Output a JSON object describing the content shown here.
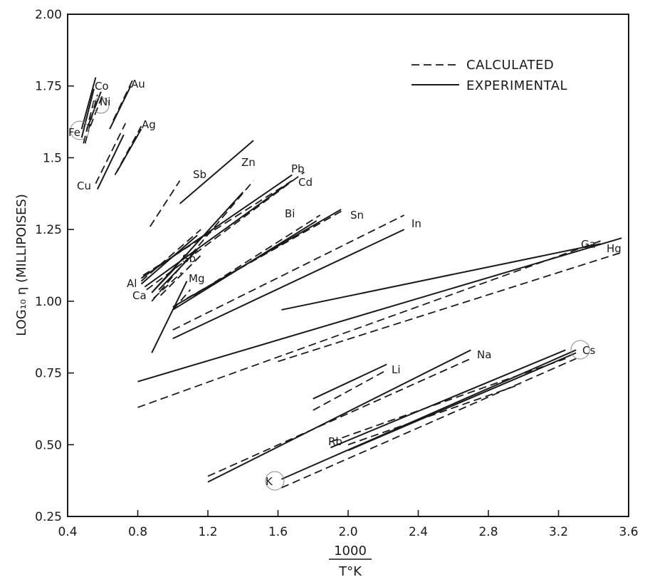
{
  "chart_data": {
    "type": "line",
    "xlabel_numerator": "1000",
    "xlabel_denominator": "T°K",
    "ylabel": "LOG₁₀ η (MILLIPOISES)",
    "xlim": [
      0.4,
      3.6
    ],
    "ylim": [
      0.25,
      2.0
    ],
    "xticks": [
      {
        "value": 0.4,
        "label": "0.4"
      },
      {
        "value": 0.8,
        "label": "0.8"
      },
      {
        "value": 1.2,
        "label": "1.2"
      },
      {
        "value": 1.6,
        "label": "1.6"
      },
      {
        "value": 2.0,
        "label": "2.0"
      },
      {
        "value": 2.4,
        "label": "2.4"
      },
      {
        "value": 2.8,
        "label": "2.8"
      },
      {
        "value": 3.2,
        "label": "3.2"
      },
      {
        "value": 3.6,
        "label": "3.6"
      }
    ],
    "yticks": [
      {
        "value": 0.25,
        "label": "0.25"
      },
      {
        "value": 0.5,
        "label": "0.50"
      },
      {
        "value": 0.75,
        "label": "0.75"
      },
      {
        "value": 1.0,
        "label": "1.00"
      },
      {
        "value": 1.25,
        "label": "1.25"
      },
      {
        "value": 1.5,
        "label": "1.5"
      },
      {
        "value": 1.75,
        "label": "1.75"
      },
      {
        "value": 2.0,
        "label": "2.00"
      }
    ],
    "legend": {
      "placement": "top-right",
      "items": [
        {
          "style": "dashed",
          "label": "CALCULATED"
        },
        {
          "style": "solid",
          "label": "EXPERIMENTAL"
        }
      ]
    },
    "series": [
      {
        "label": "Fe",
        "experimental": [
          [
            0.48,
            1.57
          ],
          [
            0.55,
            1.74
          ]
        ],
        "calculated": [
          [
            0.49,
            1.55
          ],
          [
            0.55,
            1.7
          ]
        ]
      },
      {
        "label": "Co",
        "experimental": [
          [
            0.48,
            1.6
          ],
          [
            0.56,
            1.78
          ]
        ],
        "calculated": [
          [
            0.5,
            1.55
          ],
          [
            0.57,
            1.72
          ]
        ]
      },
      {
        "label": "Ni",
        "experimental": [
          [
            0.51,
            1.6
          ],
          [
            0.59,
            1.73
          ]
        ],
        "calculated": [
          [
            0.53,
            1.61
          ],
          [
            0.6,
            1.72
          ]
        ]
      },
      {
        "label": "Au",
        "experimental": [
          [
            0.64,
            1.6
          ],
          [
            0.76,
            1.75
          ]
        ],
        "calculated": [
          [
            0.66,
            1.63
          ],
          [
            0.77,
            1.77
          ]
        ]
      },
      {
        "label": "Cu",
        "experimental": [
          [
            0.57,
            1.39
          ],
          [
            0.72,
            1.58
          ]
        ],
        "calculated": [
          [
            0.56,
            1.41
          ],
          [
            0.73,
            1.62
          ]
        ]
      },
      {
        "label": "Ag",
        "experimental": [
          [
            0.68,
            1.45
          ],
          [
            0.82,
            1.6
          ]
        ],
        "calculated": [
          [
            0.67,
            1.44
          ],
          [
            0.82,
            1.61
          ]
        ]
      },
      {
        "label": "Sb",
        "experimental": [
          [
            1.04,
            1.34
          ],
          [
            1.46,
            1.56
          ]
        ],
        "calculated": [
          [
            0.87,
            1.26
          ],
          [
            1.04,
            1.42
          ]
        ]
      },
      {
        "label": "Zn",
        "experimental": [
          [
            0.88,
            1.03
          ],
          [
            1.4,
            1.38
          ]
        ],
        "calculated": [
          [
            0.88,
            1.0
          ],
          [
            1.46,
            1.42
          ]
        ]
      },
      {
        "label": "Pb",
        "experimental": [
          [
            0.82,
            1.08
          ],
          [
            1.68,
            1.44
          ]
        ],
        "calculated": [
          [
            0.83,
            1.09
          ],
          [
            1.68,
            1.42
          ]
        ]
      },
      {
        "label": "Cd",
        "experimental": [
          [
            0.84,
            1.05
          ],
          [
            1.68,
            1.42
          ]
        ],
        "calculated": [
          [
            0.85,
            1.04
          ],
          [
            1.75,
            1.45
          ]
        ]
      },
      {
        "label": "Al",
        "experimental": [
          [
            0.82,
            1.06
          ],
          [
            1.14,
            1.23
          ]
        ],
        "calculated": [
          [
            0.82,
            1.07
          ],
          [
            1.16,
            1.25
          ]
        ]
      },
      {
        "label": "Ca",
        "experimental": [
          [
            0.88,
            1.03
          ],
          [
            1.02,
            1.12
          ]
        ],
        "calculated": [
          [
            0.89,
            1.01
          ],
          [
            1.05,
            1.1
          ]
        ]
      },
      {
        "label": "Sb",
        "experimental": [
          [
            0.92,
            1.04
          ],
          [
            1.14,
            1.18
          ]
        ],
        "calculated": [
          [
            0.93,
            1.02
          ],
          [
            1.16,
            1.16
          ]
        ]
      },
      {
        "label": "Mg",
        "experimental": [
          [
            0.88,
            0.82
          ],
          [
            1.08,
            1.07
          ]
        ],
        "calculated": [
          [
            1.0,
            0.97
          ],
          [
            1.1,
            1.04
          ]
        ]
      },
      {
        "label": "Bi",
        "experimental": [
          [
            1.0,
            0.97
          ],
          [
            1.82,
            1.28
          ]
        ],
        "calculated": [
          [
            1.12,
            1.02
          ],
          [
            1.84,
            1.3
          ]
        ]
      },
      {
        "label": "Sn",
        "experimental": [
          [
            1.0,
            0.98
          ],
          [
            1.96,
            1.32
          ]
        ],
        "calculated": [
          [
            1.08,
            1.01
          ],
          [
            1.98,
            1.32
          ]
        ]
      },
      {
        "label": "In",
        "experimental": [
          [
            1.0,
            0.87
          ],
          [
            2.32,
            1.25
          ]
        ],
        "calculated": [
          [
            1.0,
            0.9
          ],
          [
            2.32,
            1.3
          ]
        ]
      },
      {
        "label": "Ga",
        "experimental": [
          [
            1.62,
            0.97
          ],
          [
            3.44,
            1.2
          ]
        ],
        "calculated": [
          [
            0.8,
            0.63
          ],
          [
            3.44,
            1.21
          ]
        ]
      },
      {
        "label": "Hg",
        "experimental": [
          [
            0.8,
            0.72
          ],
          [
            3.56,
            1.22
          ]
        ],
        "calculated": [
          [
            1.6,
            0.79
          ],
          [
            3.56,
            1.17
          ]
        ]
      },
      {
        "label": "Li",
        "experimental": [
          [
            1.8,
            0.66
          ],
          [
            2.22,
            0.78
          ]
        ],
        "calculated": [
          [
            1.8,
            0.62
          ],
          [
            2.22,
            0.76
          ]
        ]
      },
      {
        "label": "Na",
        "experimental": [
          [
            1.2,
            0.37
          ],
          [
            2.7,
            0.83
          ]
        ],
        "calculated": [
          [
            1.2,
            0.39
          ],
          [
            2.7,
            0.8
          ]
        ]
      },
      {
        "label": "K",
        "experimental": [
          [
            1.62,
            0.38
          ],
          [
            3.3,
            0.83
          ]
        ],
        "calculated": [
          [
            1.62,
            0.35
          ],
          [
            3.3,
            0.8
          ]
        ]
      },
      {
        "label": "Rb",
        "experimental": [
          [
            1.9,
            0.49
          ],
          [
            3.24,
            0.83
          ]
        ],
        "calculated": [
          [
            1.9,
            0.51
          ],
          [
            3.24,
            0.8
          ]
        ]
      },
      {
        "label": "Cs",
        "experimental": [
          [
            2.0,
            0.48
          ],
          [
            3.3,
            0.82
          ]
        ],
        "calculated": [
          [
            2.0,
            0.5
          ],
          [
            2.98,
            0.71
          ]
        ]
      }
    ]
  }
}
